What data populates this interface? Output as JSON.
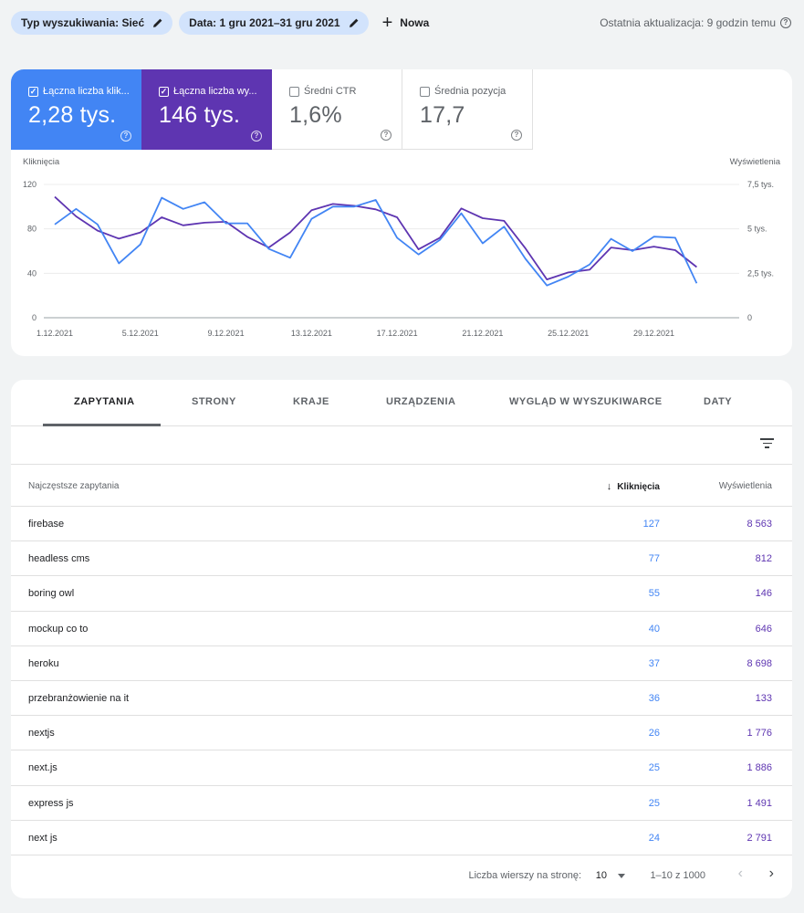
{
  "filters": {
    "search_type": "Typ wyszukiwania: Sieć",
    "date": "Data: 1 gru 2021–31 gru 2021",
    "new_label": "Nowa",
    "last_update": "Ostatnia aktualizacja: 9 godzin temu"
  },
  "metrics": [
    {
      "label": "Łączna liczba klik...",
      "value": "2,28 tys.",
      "checked": true,
      "color": "#4285f4"
    },
    {
      "label": "Łączna liczba wy...",
      "value": "146 tys.",
      "checked": true,
      "color": "#5e35b1"
    },
    {
      "label": "Średni CTR",
      "value": "1,6%",
      "checked": false
    },
    {
      "label": "Średnia pozycja",
      "value": "17,7",
      "checked": false
    }
  ],
  "chart_data": {
    "type": "line",
    "left_axis_label": "Kliknięcia",
    "right_axis_label": "Wyświetlenia",
    "left_ticks": [
      "120",
      "80",
      "40",
      "0"
    ],
    "right_ticks": [
      "7,5 tys.",
      "5 tys.",
      "2,5 tys.",
      "0"
    ],
    "left_ylim": [
      0,
      120
    ],
    "right_ylim": [
      0,
      7500
    ],
    "x_tick_labels": [
      "1.12.2021",
      "5.12.2021",
      "9.12.2021",
      "13.12.2021",
      "17.12.2021",
      "21.12.2021",
      "25.12.2021",
      "29.12.2021"
    ],
    "x": [
      "1.12.2021",
      "2.12.2021",
      "3.12.2021",
      "4.12.2021",
      "5.12.2021",
      "6.12.2021",
      "7.12.2021",
      "8.12.2021",
      "9.12.2021",
      "10.12.2021",
      "11.12.2021",
      "12.12.2021",
      "13.12.2021",
      "14.12.2021",
      "15.12.2021",
      "16.12.2021",
      "17.12.2021",
      "18.12.2021",
      "19.12.2021",
      "20.12.2021",
      "21.12.2021",
      "22.12.2021",
      "23.12.2021",
      "24.12.2021",
      "25.12.2021",
      "26.12.2021",
      "27.12.2021",
      "28.12.2021",
      "29.12.2021",
      "30.12.2021",
      "31.12.2021"
    ],
    "series": [
      {
        "name": "Kliknięcia",
        "axis": "left",
        "color": "#4285f4",
        "values": [
          84,
          98,
          84,
          49,
          66,
          108,
          98,
          104,
          85,
          85,
          62,
          54,
          89,
          100,
          100,
          106,
          72,
          57,
          70,
          94,
          67,
          82,
          53,
          29,
          37,
          48,
          71,
          60,
          73,
          72,
          31
        ]
      },
      {
        "name": "Wyświetlenia",
        "axis": "right",
        "color": "#5e35b1",
        "values": [
          6800,
          5700,
          4900,
          4450,
          4800,
          5650,
          5200,
          5350,
          5400,
          4550,
          3950,
          4800,
          6050,
          6400,
          6300,
          6100,
          5650,
          3850,
          4500,
          6150,
          5600,
          5450,
          3900,
          2150,
          2550,
          2700,
          3950,
          3800,
          4000,
          3800,
          2850
        ]
      }
    ]
  },
  "tabs": [
    "ZAPYTANIA",
    "STRONY",
    "KRAJE",
    "URZĄDZENIA",
    "WYGLĄD W WYSZUKIWARCE",
    "DATY"
  ],
  "table": {
    "col_query": "Najczęstsze zapytania",
    "col_clicks": "Kliknięcia",
    "col_impressions": "Wyświetlenia",
    "rows": [
      {
        "query": "firebase",
        "clicks": "127",
        "impressions": "8 563"
      },
      {
        "query": "headless cms",
        "clicks": "77",
        "impressions": "812"
      },
      {
        "query": "boring owl",
        "clicks": "55",
        "impressions": "146"
      },
      {
        "query": "mockup co to",
        "clicks": "40",
        "impressions": "646"
      },
      {
        "query": "heroku",
        "clicks": "37",
        "impressions": "8 698"
      },
      {
        "query": "przebranżowienie na it",
        "clicks": "36",
        "impressions": "133"
      },
      {
        "query": "nextjs",
        "clicks": "26",
        "impressions": "1 776"
      },
      {
        "query": "next.js",
        "clicks": "25",
        "impressions": "1 886"
      },
      {
        "query": "express js",
        "clicks": "25",
        "impressions": "1 491"
      },
      {
        "query": "next js",
        "clicks": "24",
        "impressions": "2 791"
      }
    ]
  },
  "pagination": {
    "rows_per_page_label": "Liczba wierszy na stronę:",
    "rows_per_page": "10",
    "range": "1–10 z 1000"
  }
}
